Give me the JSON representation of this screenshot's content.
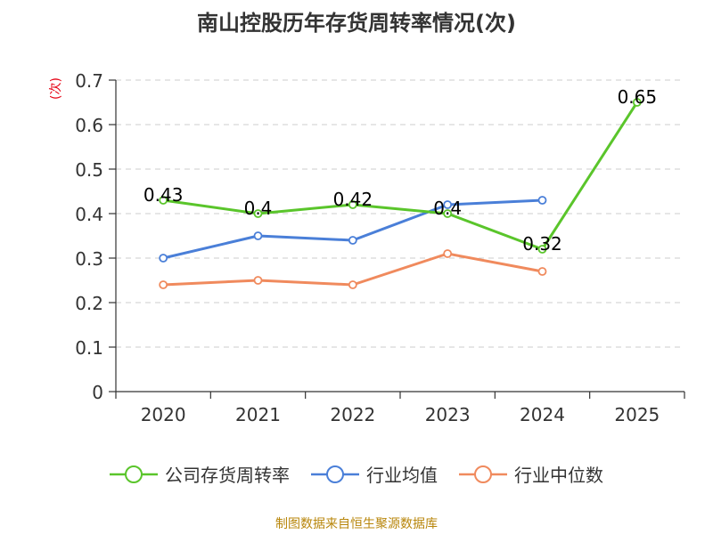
{
  "chart_data": {
    "type": "line",
    "title": "南山控股历年存货周转率情况(次)",
    "ylabel": "(次)",
    "ylim": [
      0,
      0.7
    ],
    "yticks": [
      "0",
      "0.1",
      "0.2",
      "0.3",
      "0.4",
      "0.5",
      "0.6",
      "0.7"
    ],
    "categories": [
      "2020",
      "2021",
      "2022",
      "2023",
      "2024",
      "2025"
    ],
    "grid": true,
    "legend_position": "bottom",
    "series": [
      {
        "name": "公司存货周转率",
        "color": "#5ac52b",
        "values": [
          0.43,
          0.4,
          0.42,
          0.4,
          0.32,
          0.65
        ],
        "data_labels": [
          "0.43",
          "0.4",
          "0.42",
          "0.4",
          "0.32",
          "0.65"
        ]
      },
      {
        "name": "行业均值",
        "color": "#4a7fd8",
        "values": [
          0.3,
          0.35,
          0.34,
          0.42,
          0.43,
          null
        ]
      },
      {
        "name": "行业中位数",
        "color": "#f08a5d",
        "values": [
          0.24,
          0.25,
          0.24,
          0.31,
          0.27,
          null
        ]
      }
    ],
    "source": "制图数据来自恒生聚源数据库"
  }
}
